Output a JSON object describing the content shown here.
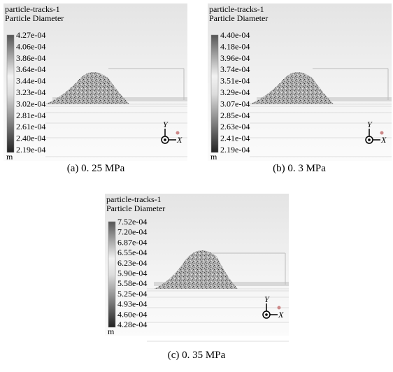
{
  "panels": [
    {
      "title": "particle-tracks-1",
      "subtitle": "Particle Diameter",
      "unit": "m",
      "legend_labels": [
        "4.27e-04",
        "4.06e-04",
        "3.86e-04",
        "3.64e-04",
        "3.44e-04",
        "3.23e-04",
        "3.02e-04",
        "2.81e-04",
        "2.61e-04",
        "2.40e-04",
        "2.19e-04"
      ],
      "axis_y": "Y",
      "axis_x": "X",
      "caption": "(a) 0. 25 MPa"
    },
    {
      "title": "particle-tracks-1",
      "subtitle": "Particle Diameter",
      "unit": "m",
      "legend_labels": [
        "4.40e-04",
        "4.18e-04",
        "3.96e-04",
        "3.74e-04",
        "3.51e-04",
        "3.29e-04",
        "3.07e-04",
        "2.85e-04",
        "2.63e-04",
        "2.41e-04",
        "2.19e-04"
      ],
      "axis_y": "Y",
      "axis_x": "X",
      "caption": "(b) 0. 3 MPa"
    },
    {
      "title": "particle-tracks-1",
      "subtitle": "Particle Diameter",
      "unit": "m",
      "legend_labels": [
        "7.52e-04",
        "7.20e-04",
        "6.87e-04",
        "6.55e-04",
        "6.23e-04",
        "5.90e-04",
        "5.58e-04",
        "5.25e-04",
        "4.93e-04",
        "4.60e-04",
        "4.28e-04"
      ],
      "axis_y": "Y",
      "axis_x": "X",
      "caption": "(c) 0. 35 MPa"
    }
  ]
}
